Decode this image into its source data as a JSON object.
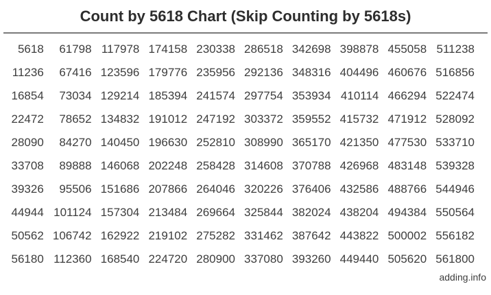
{
  "page": {
    "title": "Count by 5618 Chart (Skip Counting by 5618s)",
    "footer": "adding.info"
  },
  "colors": {
    "background": "#ffffff",
    "title_text": "#2d2d2d",
    "number_text": "#3d3d3d",
    "divider_rule": "#7a7a7a"
  },
  "chart_data": {
    "type": "table",
    "title": "Count by 5618 Chart (Skip Counting by 5618s)",
    "step": 5618,
    "start": 5618,
    "end": 561800,
    "order": "values increase by 5618 down each column; 10 rows x 10 columns",
    "rows": [
      [
        5618,
        61798,
        117978,
        174158,
        230338,
        286518,
        342698,
        398878,
        455058,
        511238
      ],
      [
        11236,
        67416,
        123596,
        179776,
        235956,
        292136,
        348316,
        404496,
        460676,
        516856
      ],
      [
        16854,
        73034,
        129214,
        185394,
        241574,
        297754,
        353934,
        410114,
        466294,
        522474
      ],
      [
        22472,
        78652,
        134832,
        191012,
        247192,
        303372,
        359552,
        415732,
        471912,
        528092
      ],
      [
        28090,
        84270,
        140450,
        196630,
        252810,
        308990,
        365170,
        421350,
        477530,
        533710
      ],
      [
        33708,
        89888,
        146068,
        202248,
        258428,
        314608,
        370788,
        426968,
        483148,
        539328
      ],
      [
        39326,
        95506,
        151686,
        207866,
        264046,
        320226,
        376406,
        432586,
        488766,
        544946
      ],
      [
        44944,
        101124,
        157304,
        213484,
        269664,
        325844,
        382024,
        438204,
        494384,
        550564
      ],
      [
        50562,
        106742,
        162922,
        219102,
        275282,
        331462,
        387642,
        443822,
        500002,
        556182
      ],
      [
        56180,
        112360,
        168540,
        224720,
        280900,
        337080,
        393260,
        449440,
        505620,
        561800
      ]
    ]
  }
}
